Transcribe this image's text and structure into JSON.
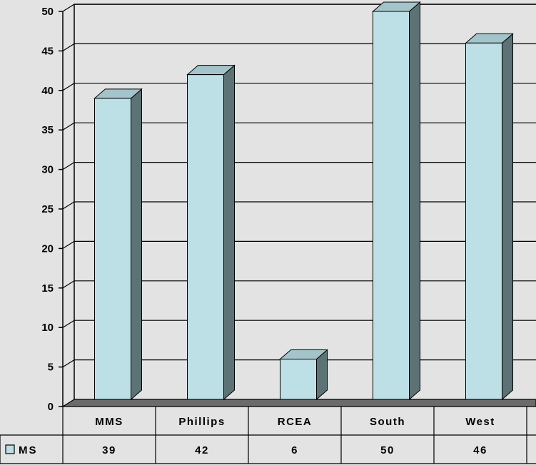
{
  "chart_data": {
    "type": "bar",
    "categories": [
      "MMS",
      "Phillips",
      "RCEA",
      "South",
      "West"
    ],
    "series": [
      {
        "name": "MS",
        "values": [
          39,
          42,
          6,
          50,
          46
        ]
      }
    ],
    "y_ticks": [
      "0",
      "5",
      "10",
      "15",
      "20",
      "25",
      "30",
      "35",
      "40",
      "45",
      "50"
    ],
    "ylim": [
      0,
      50
    ],
    "grid": true,
    "legend": "data-table-left",
    "data_table": true,
    "style": "3d-column"
  },
  "colors": {
    "background": "#e3e3e3",
    "bar_front": "#bde0e6",
    "bar_top": "#a2c4ca",
    "bar_side": "#5d7275",
    "floor": "#6b6b6b",
    "wall_line": "#000000"
  }
}
